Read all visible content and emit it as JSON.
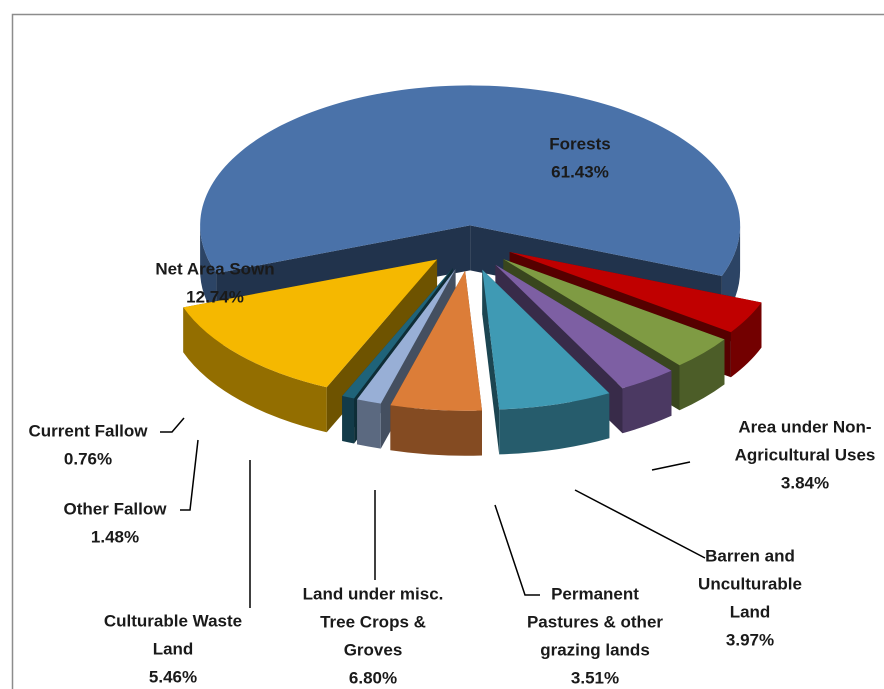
{
  "chart_data": {
    "type": "pie3d",
    "categories": [
      [
        "Forests"
      ],
      [
        "Area under Non-",
        "Agricultural Uses"
      ],
      [
        "Barren and",
        "Unculturable",
        "Land"
      ],
      [
        "Permanent",
        "Pastures & other",
        "grazing lands"
      ],
      [
        "Land under misc.",
        "Tree Crops &",
        "Groves"
      ],
      [
        "Culturable Waste",
        "Land"
      ],
      [
        "Other Fallow"
      ],
      [
        "Current Fallow"
      ],
      [
        "Net Area Sown"
      ]
    ],
    "values": [
      61.43,
      3.84,
      3.97,
      3.51,
      6.8,
      5.46,
      1.48,
      0.76,
      12.74
    ],
    "value_labels": [
      "61.43%",
      "3.84%",
      "3.97%",
      "3.51%",
      "6.80%",
      "5.46%",
      "1.48%",
      "0.76%",
      "12.74%"
    ],
    "colors": [
      "#4a72a9",
      "#c00000",
      "#7f9b43",
      "#7d5fa3",
      "#3f9ab4",
      "#dc7d38",
      "#98afd6",
      "#1f6379",
      "#f5b800"
    ]
  }
}
